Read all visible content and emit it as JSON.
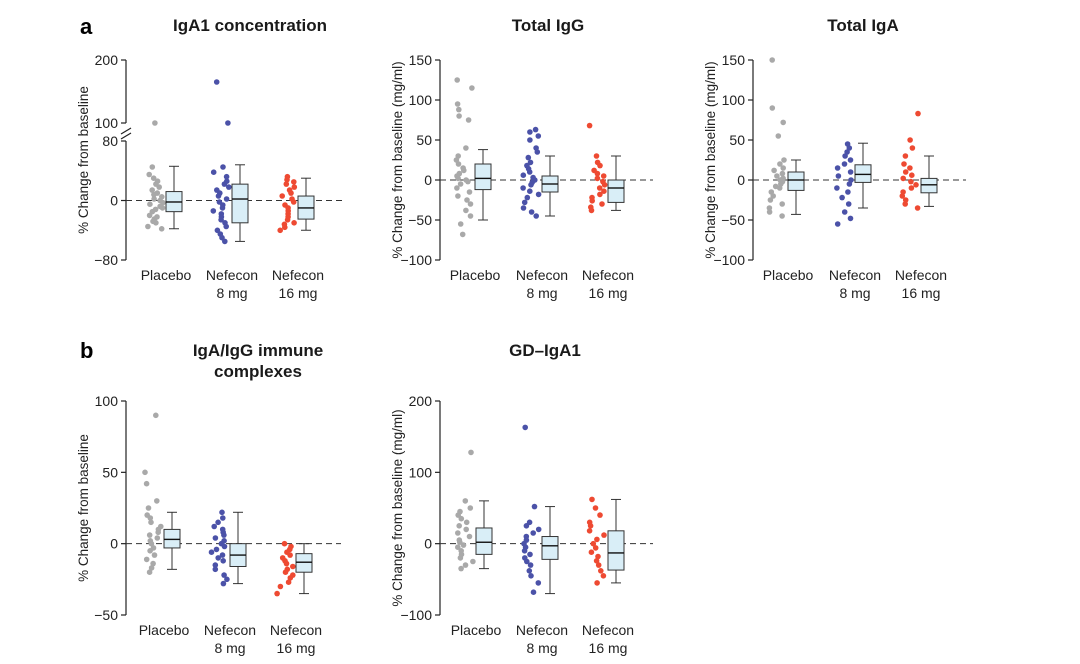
{
  "panel_labels": [
    "a",
    "b"
  ],
  "groups": [
    "Placebo",
    "Nefecon 8 mg",
    "Nefecon 16 mg"
  ],
  "colors": {
    "Placebo": "#a9a9a9",
    "Nefecon 8 mg": "#4b52a8",
    "Nefecon 16 mg": "#ee4a32",
    "box_fill": "#d9eef7",
    "box_edge": "#333333"
  },
  "chart_data": [
    {
      "type": "box",
      "title": "IgA1 concentration",
      "ylabel": "% Change from baseline",
      "axis_break": true,
      "ylim_lower": [
        -80,
        80
      ],
      "ylim_upper": [
        100,
        200
      ],
      "yticks": [
        -80,
        0,
        80,
        100,
        200
      ],
      "reference_line": 0,
      "categories": [
        [
          "Placebo"
        ],
        [
          "Nefecon",
          "8 mg"
        ],
        [
          "Nefecon",
          "16 mg"
        ]
      ],
      "series": [
        {
          "name": "Placebo",
          "points": [
            -38,
            -35,
            -30,
            -28,
            -25,
            -22,
            -20,
            -15,
            -12,
            -10,
            -8,
            -5,
            -3,
            0,
            2,
            5,
            8,
            10,
            14,
            18,
            22,
            26,
            30,
            35,
            45,
            100
          ],
          "box": {
            "whisker_low": -38,
            "q1": -15,
            "median": -2,
            "q3": 12,
            "whisker_high": 46
          }
        },
        {
          "name": "Nefecon 8 mg",
          "points": [
            -55,
            -50,
            -45,
            -40,
            -35,
            -30,
            -26,
            -22,
            -18,
            -14,
            -10,
            -6,
            -2,
            2,
            6,
            10,
            14,
            18,
            22,
            26,
            32,
            38,
            45,
            100,
            165
          ],
          "box": {
            "whisker_low": -55,
            "q1": -30,
            "median": 2,
            "q3": 22,
            "whisker_high": 48
          }
        },
        {
          "name": "Nefecon 16 mg",
          "points": [
            -40,
            -36,
            -32,
            -30,
            -26,
            -22,
            -18,
            -14,
            -10,
            -6,
            -2,
            2,
            6,
            10,
            14,
            18,
            22,
            25,
            28,
            32
          ],
          "box": {
            "whisker_low": -40,
            "q1": -25,
            "median": -10,
            "q3": 6,
            "whisker_high": 30
          }
        }
      ]
    },
    {
      "type": "box",
      "title": "Total IgG",
      "ylabel": "% Change from baseline (mg/ml)",
      "ylim": [
        -100,
        150
      ],
      "yticks": [
        -100,
        -50,
        0,
        50,
        100,
        150
      ],
      "reference_line": 0,
      "categories": [
        [
          "Placebo"
        ],
        [
          "Nefecon",
          "8 mg"
        ],
        [
          "Nefecon",
          "16 mg"
        ]
      ],
      "series": [
        {
          "name": "Placebo",
          "points": [
            -68,
            -55,
            -45,
            -38,
            -30,
            -25,
            -20,
            -15,
            -10,
            -5,
            -2,
            0,
            2,
            5,
            8,
            12,
            15,
            20,
            25,
            30,
            40,
            75,
            80,
            88,
            95,
            115,
            125
          ],
          "box": {
            "whisker_low": -50,
            "q1": -12,
            "median": 2,
            "q3": 20,
            "whisker_high": 38
          }
        },
        {
          "name": "Nefecon 8 mg",
          "points": [
            -45,
            -40,
            -35,
            -28,
            -22,
            -18,
            -14,
            -10,
            -6,
            -3,
            0,
            3,
            6,
            10,
            14,
            18,
            22,
            28,
            35,
            40,
            50,
            55,
            60,
            63
          ],
          "box": {
            "whisker_low": -45,
            "q1": -15,
            "median": -5,
            "q3": 5,
            "whisker_high": 30
          }
        },
        {
          "name": "Nefecon 16 mg",
          "points": [
            -38,
            -34,
            -30,
            -26,
            -22,
            -18,
            -14,
            -10,
            -6,
            -2,
            2,
            5,
            8,
            12,
            18,
            22,
            30,
            68
          ],
          "box": {
            "whisker_low": -38,
            "q1": -28,
            "median": -10,
            "q3": 0,
            "whisker_high": 30
          }
        }
      ]
    },
    {
      "type": "box",
      "title": "Total IgA",
      "ylabel": "% Change from baseline (mg/ml)",
      "ylim": [
        -100,
        150
      ],
      "yticks": [
        -100,
        -50,
        0,
        50,
        100,
        150
      ],
      "reference_line": 0,
      "categories": [
        [
          "Placebo"
        ],
        [
          "Nefecon",
          "8 mg"
        ],
        [
          "Nefecon",
          "16 mg"
        ]
      ],
      "series": [
        {
          "name": "Placebo",
          "points": [
            -45,
            -40,
            -35,
            -30,
            -25,
            -20,
            -15,
            -10,
            -8,
            -5,
            -2,
            0,
            2,
            5,
            8,
            12,
            15,
            20,
            25,
            55,
            72,
            90,
            150
          ],
          "box": {
            "whisker_low": -43,
            "q1": -13,
            "median": 0,
            "q3": 10,
            "whisker_high": 25
          }
        },
        {
          "name": "Nefecon 8 mg",
          "points": [
            -55,
            -48,
            -40,
            -30,
            -22,
            -15,
            -10,
            -5,
            0,
            5,
            10,
            15,
            20,
            25,
            30,
            35,
            40,
            45
          ],
          "box": {
            "whisker_low": -35,
            "q1": -3,
            "median": 7,
            "q3": 19,
            "whisker_high": 46
          }
        },
        {
          "name": "Nefecon 16 mg",
          "points": [
            -35,
            -30,
            -25,
            -20,
            -15,
            -10,
            -6,
            -2,
            2,
            6,
            10,
            15,
            20,
            30,
            40,
            50,
            83
          ],
          "box": {
            "whisker_low": -33,
            "q1": -16,
            "median": -6,
            "q3": 2,
            "whisker_high": 30
          }
        }
      ]
    },
    {
      "type": "box",
      "title": "IgA/IgG immune complexes",
      "title_lines": [
        "IgA/IgG immune",
        "complexes"
      ],
      "ylabel": "% Change from baseline",
      "ylim": [
        -50,
        100
      ],
      "yticks": [
        -50,
        0,
        50,
        100
      ],
      "reference_line": 0,
      "categories": [
        [
          "Placebo"
        ],
        [
          "Nefecon",
          "8 mg"
        ],
        [
          "Nefecon",
          "16 mg"
        ]
      ],
      "series": [
        {
          "name": "Placebo",
          "points": [
            -20,
            -17,
            -14,
            -11,
            -8,
            -5,
            -3,
            0,
            2,
            4,
            6,
            8,
            10,
            12,
            15,
            18,
            20,
            25,
            30,
            42,
            50,
            90
          ],
          "box": {
            "whisker_low": -18,
            "q1": -3,
            "median": 3,
            "q3": 10,
            "whisker_high": 22
          }
        },
        {
          "name": "Nefecon 8 mg",
          "points": [
            -28,
            -25,
            -22,
            -18,
            -15,
            -12,
            -10,
            -8,
            -6,
            -4,
            -2,
            0,
            2,
            4,
            6,
            8,
            10,
            12,
            15,
            18,
            22
          ],
          "box": {
            "whisker_low": -28,
            "q1": -16,
            "median": -8,
            "q3": 0,
            "whisker_high": 22
          }
        },
        {
          "name": "Nefecon 16 mg",
          "points": [
            -35,
            -30,
            -27,
            -24,
            -22,
            -20,
            -18,
            -16,
            -14,
            -12,
            -10,
            -8,
            -6,
            -4,
            -2,
            0
          ],
          "box": {
            "whisker_low": -35,
            "q1": -20,
            "median": -13,
            "q3": -7,
            "whisker_high": 0
          }
        }
      ]
    },
    {
      "type": "box",
      "title": "GD–IgA1",
      "ylabel": "% Change from baseline (mg/ml)",
      "ylim": [
        -100,
        200
      ],
      "yticks": [
        -100,
        0,
        100,
        200
      ],
      "reference_line": 0,
      "categories": [
        [
          "Placebo"
        ],
        [
          "Nefecon",
          "8 mg"
        ],
        [
          "Nefecon",
          "16 mg"
        ]
      ],
      "series": [
        {
          "name": "Placebo",
          "points": [
            -35,
            -30,
            -25,
            -20,
            -15,
            -10,
            -5,
            -2,
            2,
            5,
            10,
            15,
            20,
            25,
            30,
            35,
            40,
            45,
            50,
            60,
            128
          ],
          "box": {
            "whisker_low": -35,
            "q1": -15,
            "median": 2,
            "q3": 22,
            "whisker_high": 60
          }
        },
        {
          "name": "Nefecon 8 mg",
          "points": [
            -68,
            -55,
            -45,
            -38,
            -30,
            -25,
            -20,
            -15,
            -10,
            -5,
            0,
            5,
            10,
            15,
            20,
            25,
            30,
            52,
            163
          ],
          "box": {
            "whisker_low": -70,
            "q1": -22,
            "median": -3,
            "q3": 10,
            "whisker_high": 52
          }
        },
        {
          "name": "Nefecon 16 mg",
          "points": [
            -55,
            -45,
            -38,
            -30,
            -24,
            -18,
            -12,
            -6,
            0,
            6,
            12,
            18,
            25,
            30,
            40,
            50,
            62
          ],
          "box": {
            "whisker_low": -55,
            "q1": -37,
            "median": -13,
            "q3": 18,
            "whisker_high": 62
          }
        }
      ]
    }
  ]
}
